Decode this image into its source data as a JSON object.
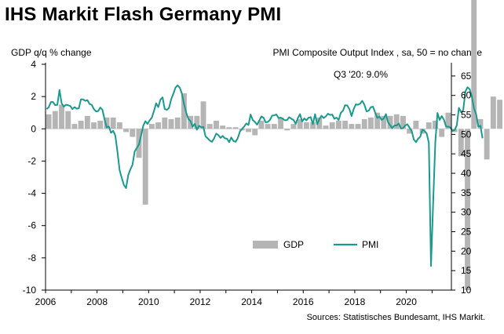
{
  "chart_data": {
    "type": "bar+line",
    "title": "IHS Markit Flash Germany PMI",
    "left_axis_label": "GDP q/q % change",
    "right_axis_label": "PMI Composite  Output  Index , sa, 50 = no change",
    "source": "Sources: Statistisches Bundesamt, IHS Markit.",
    "annotation": "Q3 '20: 9.0%",
    "left_ylim": [
      -10,
      4
    ],
    "left_ticks": [
      "4",
      "2",
      "0",
      "-2",
      "-4",
      "-6",
      "-8",
      "-10"
    ],
    "right_ylim": [
      10,
      68
    ],
    "right_ticks": [
      "65",
      "60",
      "55",
      "50",
      "45",
      "40",
      "35",
      "30",
      "25",
      "20",
      "15",
      "10"
    ],
    "x_ticks": [
      "2006",
      "2008",
      "2010",
      "2012",
      "2014",
      "2016",
      "2018",
      "2020"
    ],
    "legend": [
      "GDP",
      "PMI"
    ],
    "colors": {
      "gdp": "#b5b5b5",
      "pmi": "#1a9a8e"
    },
    "gdp_series": {
      "name": "GDP",
      "start": "2006 Q1",
      "values": [
        0.9,
        1.1,
        1.5,
        1.1,
        0.3,
        0.5,
        0.8,
        0.4,
        0.5,
        0.7,
        0.7,
        0.4,
        -0.2,
        -0.5,
        -1.8,
        -4.7,
        0.3,
        0.4,
        0.7,
        0.6,
        0.7,
        2.2,
        0.8,
        0.8,
        1.7,
        0.3,
        0.5,
        0.2,
        0.1,
        0.1,
        -0.1,
        -0.2,
        -0.4,
        0.5,
        0.3,
        0.3,
        0.7,
        -0.1,
        0.3,
        0.6,
        0.4,
        0.4,
        0.7,
        0.2,
        0.4,
        0.5,
        0.5,
        0.3,
        0.3,
        0.6,
        0.7,
        1.0,
        0.8,
        0.8,
        0.9,
        0.8,
        -0.3,
        0.5,
        -0.3,
        0.4,
        0.5,
        -0.5,
        1.0,
        -0.2,
        -1.7,
        -10.0,
        9.0,
        0.6,
        -1.9,
        2.0,
        1.8
      ]
    },
    "pmi_series": {
      "name": "PMI",
      "start": "2006-01",
      "values": [
        56.5,
        57.0,
        58.3,
        58.3,
        57.5,
        57.6,
        61.4,
        58.0,
        57.1,
        57.6,
        57.5,
        57.3,
        56.5,
        57.0,
        56.6,
        56.7,
        59.0,
        59.0,
        58.6,
        58.8,
        57.8,
        57.6,
        56.5,
        55.9,
        56.0,
        56.9,
        56.3,
        53.8,
        51.8,
        52.0,
        50.4,
        50.9,
        49.7,
        45.5,
        40.8,
        38.8,
        37.0,
        36.2,
        39.5,
        41.0,
        42.2,
        45.6,
        46.5,
        47.4,
        49.7,
        52.2,
        53.4,
        52.7,
        53.6,
        54.3,
        56.0,
        58.0,
        57.0,
        58.9,
        59.5,
        56.5,
        56.3,
        56.8,
        59.0,
        60.4,
        62.0,
        62.6,
        62.0,
        60.5,
        57.8,
        55.6,
        54.0,
        53.4,
        52.0,
        52.7,
        51.2,
        52.2,
        51.8,
        51.9,
        49.5,
        49.0,
        48.4,
        48.1,
        49.0,
        50.2,
        49.8,
        49.1,
        49.6,
        49.0,
        48.9,
        48.0,
        49.2,
        48.3,
        48.1,
        49.0,
        50.7,
        51.4,
        52.0,
        52.8,
        52.4,
        55.1,
        53.7,
        53.2,
        52.5,
        53.5,
        54.6,
        54.3,
        53.1,
        53.2,
        53.7,
        54.8,
        54.9,
        55.1,
        54.2,
        54.3,
        54.0,
        53.6,
        53.7,
        54.4,
        54.0,
        53.7,
        52.7,
        54.2,
        55.2,
        53.3,
        54.1,
        53.6,
        54.3,
        54.4,
        52.6,
        55.2,
        52.6,
        53.9,
        54.8,
        54.2,
        54.6,
        55.3,
        55.0,
        55.1,
        54.0,
        54.3,
        53.7,
        55.5,
        56.1,
        57.5,
        57.4,
        56.5,
        54.7,
        56.5,
        57.7,
        57.6,
        57.9,
        58.6,
        57.6,
        55.9,
        56.1,
        57.0,
        57.1,
        55.6,
        54.2,
        54.6,
        53.7,
        54.1,
        55.2,
        53.1,
        52.3,
        51.6,
        52.3,
        52.3,
        52.8,
        51.5,
        51.6,
        52.3,
        52.6,
        51.7,
        50.9,
        48.7,
        48.0,
        48.9,
        49.4,
        51.2,
        50.9,
        50.2,
        47.8,
        16.2,
        32.3,
        47.9,
        55.5,
        53.7,
        54.7,
        53.8,
        52.0,
        52.0,
        51.8,
        50.9,
        51.1,
        52.3,
        56.8,
        55.7,
        56.2,
        61.0,
        62.1,
        61.6,
        59.8,
        56.7,
        55.2,
        52.0,
        52.2,
        49.0
      ]
    }
  }
}
